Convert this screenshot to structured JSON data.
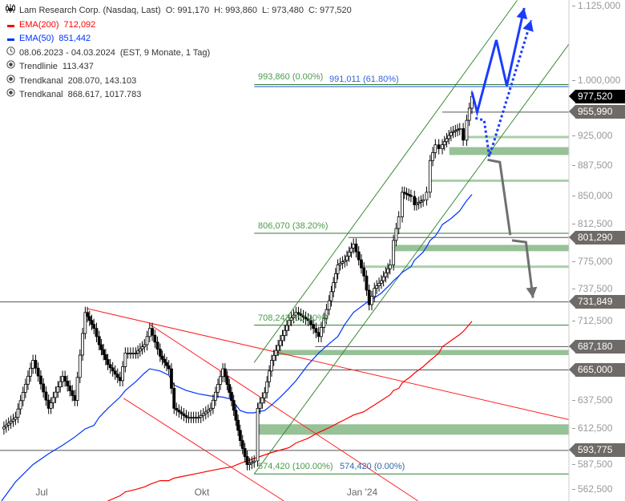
{
  "header": {
    "title": "Lam Research Corp. (Nasdaq, Last)",
    "open": "O: 991,170",
    "high": "H: 993,860",
    "low": "L: 973,480",
    "close": "C: 977,520",
    "icon": "candles-settings-icon"
  },
  "legend": {
    "ema200": {
      "label": "EMA(200)",
      "value": "712,092",
      "color": "#ff0000"
    },
    "ema50": {
      "label": "EMA(50)",
      "value": "851,442",
      "color": "#0033ff"
    },
    "period": {
      "range": "08.06.2023 - 04.03.2024",
      "detail": "(EST, 9 Monate, 1 Tag)",
      "icon": "clock-icon"
    },
    "tools": [
      {
        "label": "Trendlinie",
        "value": "113.437",
        "icon": "radio-icon"
      },
      {
        "label": "Trendkanal",
        "value": "208.070, 143.103",
        "icon": "radio-icon"
      },
      {
        "label": "Trendkanal",
        "value": "868.617, 1017.783",
        "icon": "radio-icon"
      }
    ]
  },
  "chart_data": {
    "type": "candlestick",
    "scale": "log",
    "ylim": [
      560000,
      1125000
    ],
    "y_ticks": [
      "1.125,000",
      "1.000,000",
      "925,000",
      "887,500",
      "850,000",
      "812,500",
      "775,000",
      "737,500",
      "712,500",
      "637,500",
      "612,500",
      "587,500",
      "562,500"
    ],
    "y_tick_values": [
      1125,
      1000,
      925,
      887.5,
      850,
      812.5,
      775,
      737.5,
      712.5,
      637.5,
      612.5,
      587.5,
      562.5
    ],
    "x_ticks": [
      {
        "label": "Jul",
        "date": "2023-07-01"
      },
      {
        "label": "Okt",
        "date": "2023-10-01"
      },
      {
        "label": "Jan '24",
        "date": "2024-01-01"
      }
    ],
    "price_unit_note": "",
    "closes": [
      [
        "2023-06-08",
        612
      ],
      [
        "2023-06-16",
        622
      ],
      [
        "2023-06-26",
        674
      ],
      [
        "2023-07-05",
        630
      ],
      [
        "2023-07-13",
        659
      ],
      [
        "2023-07-20",
        637
      ],
      [
        "2023-07-26",
        721
      ],
      [
        "2023-07-31",
        705
      ],
      [
        "2023-08-03",
        689
      ],
      [
        "2023-08-08",
        670
      ],
      [
        "2023-08-15",
        655
      ],
      [
        "2023-08-18",
        681
      ],
      [
        "2023-08-24",
        681
      ],
      [
        "2023-08-29",
        689
      ],
      [
        "2023-09-01",
        705
      ],
      [
        "2023-09-07",
        678
      ],
      [
        "2023-09-12",
        666
      ],
      [
        "2023-09-15",
        630
      ],
      [
        "2023-09-22",
        622
      ],
      [
        "2023-09-29",
        622
      ],
      [
        "2023-10-06",
        630
      ],
      [
        "2023-10-13",
        666
      ],
      [
        "2023-10-18",
        637
      ],
      [
        "2023-10-23",
        602
      ],
      [
        "2023-10-27",
        582
      ],
      [
        "2023-10-31",
        585
      ],
      [
        "2023-11-02",
        630
      ],
      [
        "2023-11-06",
        644
      ],
      [
        "2023-11-10",
        674
      ],
      [
        "2023-11-15",
        693
      ],
      [
        "2023-11-20",
        713
      ],
      [
        "2023-11-24",
        721
      ],
      [
        "2023-12-01",
        713
      ],
      [
        "2023-12-07",
        697
      ],
      [
        "2023-12-13",
        733
      ],
      [
        "2023-12-18",
        771
      ],
      [
        "2023-12-22",
        776
      ],
      [
        "2023-12-27",
        794
      ],
      [
        "2024-01-02",
        759
      ],
      [
        "2024-01-05",
        729
      ],
      [
        "2024-01-08",
        746
      ],
      [
        "2024-01-12",
        754
      ],
      [
        "2024-01-17",
        771
      ],
      [
        "2024-01-19",
        798
      ],
      [
        "2024-01-22",
        825
      ],
      [
        "2024-01-24",
        854
      ],
      [
        "2024-01-29",
        849
      ],
      [
        "2024-01-31",
        839
      ],
      [
        "2024-02-05",
        845
      ],
      [
        "2024-02-07",
        854
      ],
      [
        "2024-02-09",
        893
      ],
      [
        "2024-02-12",
        913
      ],
      [
        "2024-02-14",
        908
      ],
      [
        "2024-02-16",
        913
      ],
      [
        "2024-02-21",
        929
      ],
      [
        "2024-02-26",
        934
      ],
      [
        "2024-02-28",
        919
      ],
      [
        "2024-03-01",
        945
      ],
      [
        "2024-03-04",
        977.52
      ]
    ],
    "ema50": [
      553,
      568,
      582,
      591,
      598,
      605,
      612,
      615,
      622,
      630,
      640,
      646,
      654,
      662,
      666,
      664,
      660,
      651,
      646,
      643,
      641,
      640,
      638,
      628,
      626,
      626,
      627,
      628,
      633,
      640,
      648,
      655,
      670,
      681,
      690,
      697,
      709,
      721,
      729,
      733,
      736,
      741,
      750,
      754,
      759,
      763,
      769,
      776,
      785,
      791,
      798,
      803,
      809,
      816,
      823,
      832,
      838,
      844,
      851.442
    ],
    "ema200": [
      null,
      null,
      null,
      null,
      null,
      null,
      null,
      null,
      null,
      553,
      557,
      560,
      562,
      564,
      566,
      569,
      569,
      571,
      573,
      575,
      577,
      579,
      580,
      583,
      585,
      587,
      588,
      590,
      592,
      594,
      596,
      600,
      604,
      609,
      613,
      617,
      620,
      624,
      627,
      630,
      633,
      637,
      642,
      646,
      648,
      653,
      659,
      662,
      668,
      671,
      674,
      678,
      681,
      687,
      693,
      699,
      702,
      706,
      712.092
    ],
    "price_badges": [
      {
        "value": "977,520",
        "price": 977.52,
        "style": "black"
      },
      {
        "value": "955,990",
        "price": 955.99
      },
      {
        "value": "801,290",
        "price": 801.29
      },
      {
        "value": "731,849",
        "price": 731.849
      },
      {
        "value": "687,180",
        "price": 687.18
      },
      {
        "value": "665,000",
        "price": 665.0
      },
      {
        "value": "593,775",
        "price": 593.775
      }
    ],
    "fib_labels": [
      {
        "text": "993,860 (0.00%)",
        "price": 993.86,
        "color": "#4a9a4a"
      },
      {
        "text": "991,011 (61.80%)",
        "price": 991.011,
        "color": "#3366dd"
      },
      {
        "text": "806,070 (38.20%)",
        "price": 806.07,
        "color": "#4a9a4a"
      },
      {
        "text": "708,243 (50.00%)",
        "price": 708.243,
        "color": "#4a9a4a"
      },
      {
        "text": "574,420 (100.00%)",
        "price": 574.42,
        "color": "#4a9a4a"
      },
      {
        "text": "574,420 (0.00%)",
        "price": 574.42,
        "color": "#3366aa"
      }
    ],
    "levels": [
      {
        "price": 993.86,
        "from": "2023-10-31",
        "color": "#2e7d32"
      },
      {
        "price": 991.011,
        "from": "2023-10-31",
        "color": "#1f4fe0"
      },
      {
        "price": 955.99,
        "from": "2024-02-16",
        "color": "#555555"
      },
      {
        "price": 806.07,
        "from": "2023-10-31",
        "color": "#2e7d32"
      },
      {
        "price": 801.29,
        "from": "2023-12-24",
        "color": "#555555"
      },
      {
        "price": 731.849,
        "from": "2023-05-15",
        "color": "#555555"
      },
      {
        "price": 708.243,
        "from": "2023-10-31",
        "color": "#2e7d32"
      },
      {
        "price": 687.18,
        "from": "2023-12-05",
        "color": "#555555"
      },
      {
        "price": 665.0,
        "from": "2023-10-13",
        "color": "#555555"
      },
      {
        "price": 593.775,
        "from": "2023-05-15",
        "color": "#555555"
      },
      {
        "price": 574.42,
        "from": "2023-10-31",
        "color": "#2e7d32"
      }
    ],
    "zones": [
      {
        "low": 900,
        "high": 910,
        "from": "2024-02-20"
      },
      {
        "low": 786,
        "high": 793,
        "from": "2024-01-18"
      },
      {
        "low": 679,
        "high": 684,
        "from": "2023-11-13"
      },
      {
        "low": 607,
        "high": 616,
        "from": "2023-11-02"
      }
    ],
    "thin_zones": [
      {
        "price": 923,
        "from": "2024-02-27"
      },
      {
        "price": 868,
        "from": "2024-02-09"
      },
      {
        "price": 769,
        "from": "2024-01-01"
      }
    ],
    "trendlines": [
      {
        "points": [
          [
            "2023-07-27",
            725
          ],
          [
            "2024-04-29",
            620
          ]
        ],
        "color": "#ff2020"
      },
      {
        "points": [
          [
            "2023-09-01",
            709
          ],
          [
            "2024-02-02",
            553
          ]
        ],
        "color": "#ff2020"
      },
      {
        "points": [
          [
            "2023-08-17",
            639
          ],
          [
            "2023-11-17",
            553
          ]
        ],
        "color": "#ff2020"
      },
      {
        "points": [
          [
            "2023-10-31",
            672
          ],
          [
            "2024-03-30",
            1119
          ]
        ],
        "color": "#3a8a3a"
      },
      {
        "points": [
          [
            "2023-10-31",
            574.42
          ],
          [
            "2024-04-29",
            1052
          ]
        ],
        "color": "#3a8a3a"
      }
    ],
    "scenarios": [
      {
        "style": "solid",
        "color": "#1a3cff",
        "points": [
          [
            "2024-03-04",
            983
          ],
          [
            "2024-03-07",
            956
          ],
          [
            "2024-03-18",
            1058
          ],
          [
            "2024-03-24",
            992
          ],
          [
            "2024-04-03",
            1107
          ]
        ]
      },
      {
        "style": "dotted",
        "color": "#1a3cff",
        "points": [
          [
            "2024-03-06",
            948
          ],
          [
            "2024-03-11",
            945
          ],
          [
            "2024-03-14",
            898
          ],
          [
            "2024-04-07",
            1088
          ]
        ]
      },
      {
        "style": "grey",
        "color": "#707070",
        "points": [
          [
            "2024-03-13",
            894
          ],
          [
            "2024-03-20",
            891
          ],
          [
            "2024-03-26",
            804
          ]
        ]
      },
      {
        "style": "grey-arrow",
        "color": "#707070",
        "points": [
          [
            "2024-03-27",
            798
          ],
          [
            "2024-04-04",
            796
          ],
          [
            "2024-04-08",
            736
          ]
        ]
      }
    ]
  }
}
